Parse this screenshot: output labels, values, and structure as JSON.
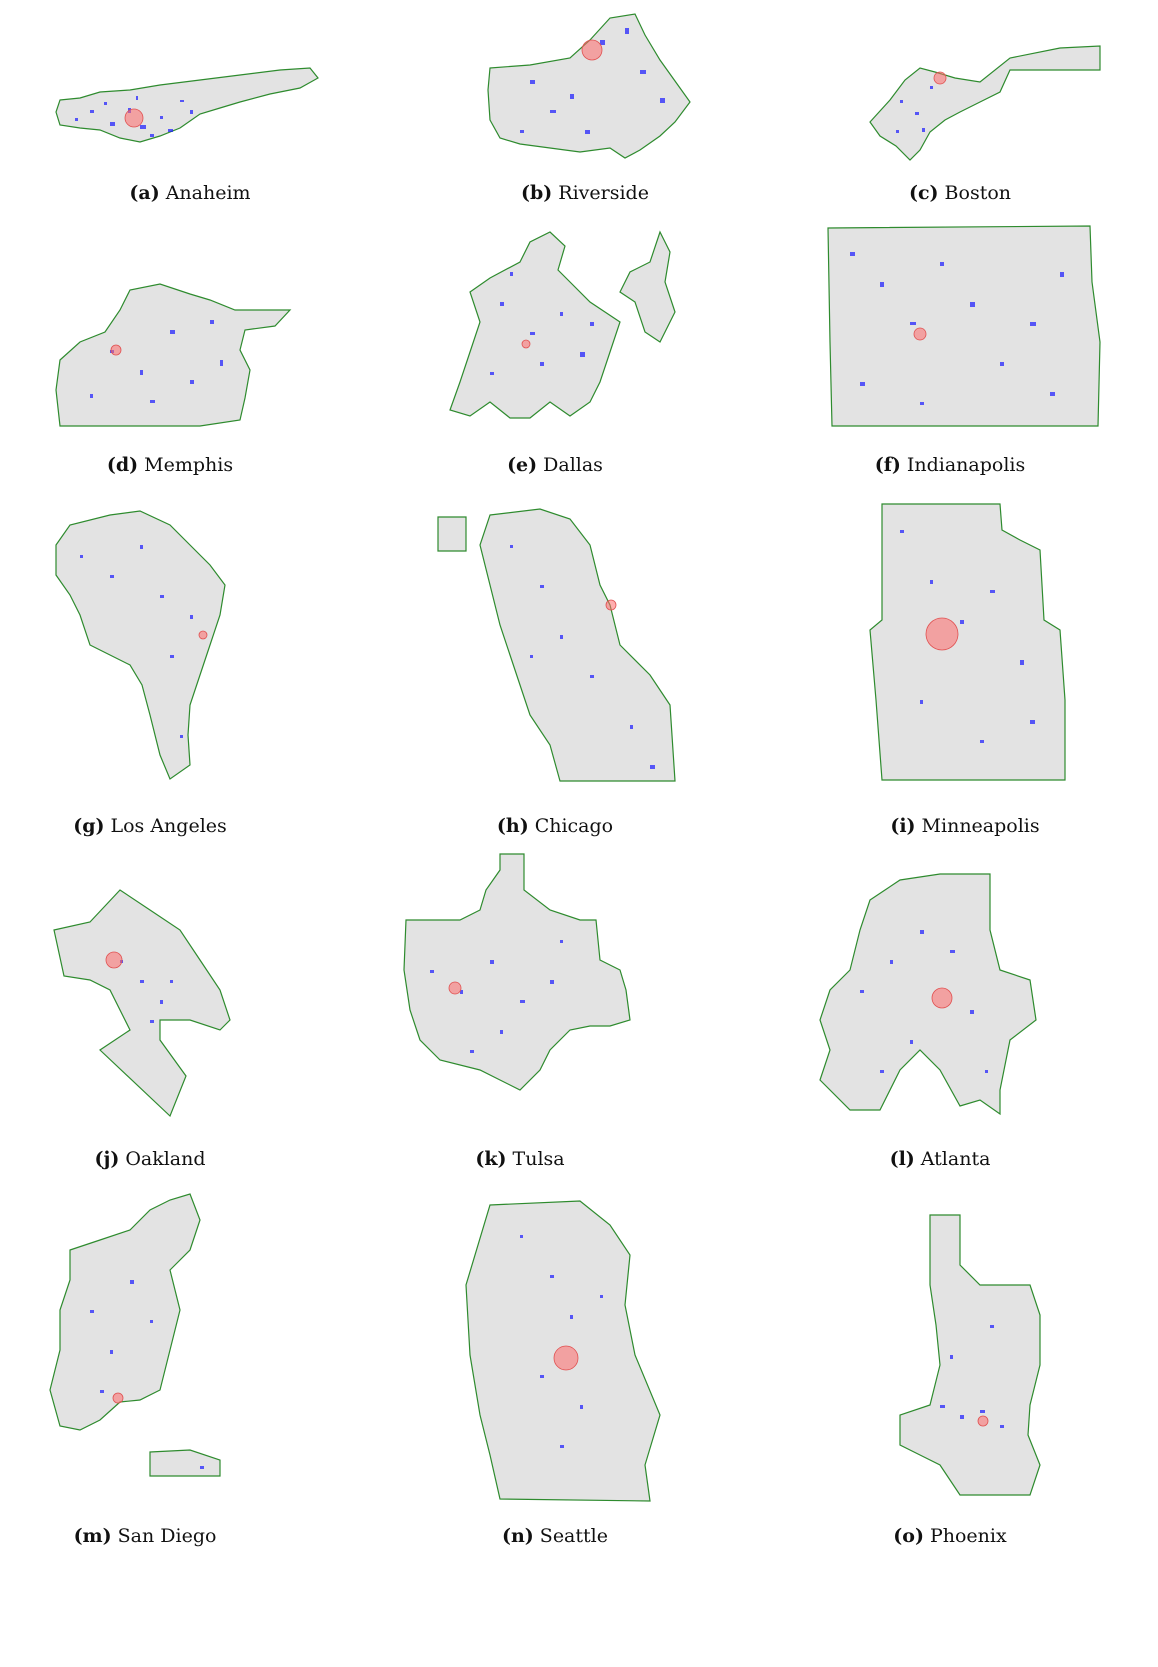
{
  "panels": [
    {
      "tag": "(a)",
      "city": "Anaheim"
    },
    {
      "tag": "(b)",
      "city": "Riverside"
    },
    {
      "tag": "(c)",
      "city": "Boston"
    },
    {
      "tag": "(d)",
      "city": "Memphis"
    },
    {
      "tag": "(e)",
      "city": "Dallas"
    },
    {
      "tag": "(f)",
      "city": "Indianapolis"
    },
    {
      "tag": "(g)",
      "city": "Los Angeles"
    },
    {
      "tag": "(h)",
      "city": "Chicago"
    },
    {
      "tag": "(i)",
      "city": "Minneapolis"
    },
    {
      "tag": "(j)",
      "city": "Oakland"
    },
    {
      "tag": "(k)",
      "city": "Tulsa"
    },
    {
      "tag": "(l)",
      "city": "Atlanta"
    },
    {
      "tag": "(m)",
      "city": "San Diego"
    },
    {
      "tag": "(n)",
      "city": "Seattle"
    },
    {
      "tag": "(o)",
      "city": "Phoenix"
    }
  ],
  "colors": {
    "boundary": "#2e8b2e",
    "land": "#e3e3e3",
    "features": "#1a1aff",
    "center_marker": "#ff6b6b"
  }
}
